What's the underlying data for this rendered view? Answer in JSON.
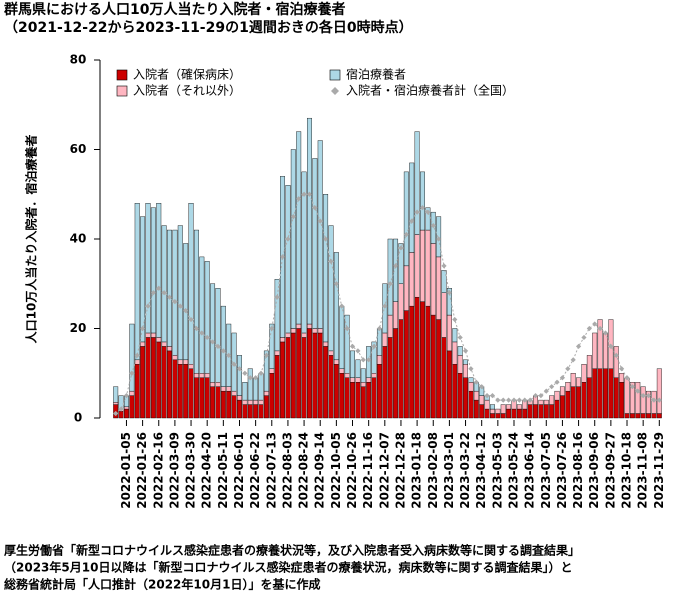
{
  "chart_data": {
    "type": "bar",
    "stacked": true,
    "title": "群馬県における人口10万人当たり入院者・宿泊療養者",
    "subtitle": "（2021-12-22から2023-11-29の1週間おきの各日0時時点）",
    "y_label": "人口10万人当たり入院者．宿泊療養者",
    "source": [
      "厚生労働省「新型コロナウイルス感染症患者の療養状況等，及び入院患者受入病床数等に関する調査結果」",
      "（2023年5月10日以降は「新型コロナウイルス感染症患者の療養状況，病床数等に関する調査結果」）と",
      "総務省統計局「人口推計（2022年10月1日）」を基に作成"
    ],
    "categories": [
      null,
      null,
      "2022-01-05",
      null,
      null,
      "2022-01-26",
      null,
      null,
      "2022-02-16",
      null,
      null,
      "2022-03-09",
      null,
      null,
      "2022-03-30",
      null,
      null,
      "2022-04-20",
      null,
      null,
      "2022-05-11",
      null,
      null,
      "2022-06-01",
      null,
      null,
      "2022-06-22",
      null,
      null,
      "2022-07-13",
      null,
      null,
      "2022-08-03",
      null,
      null,
      "2022-08-24",
      null,
      null,
      "2022-09-14",
      null,
      null,
      "2022-10-05",
      null,
      null,
      "2022-10-26",
      null,
      null,
      "2022-11-16",
      null,
      null,
      "2022-12-07",
      null,
      null,
      "2022-12-28",
      null,
      null,
      "2023-01-18",
      null,
      null,
      "2023-02-08",
      null,
      null,
      "2023-03-01",
      null,
      null,
      "2023-03-22",
      null,
      null,
      "2023-04-12",
      null,
      null,
      "2023-05-03",
      null,
      null,
      "2023-05-24",
      null,
      null,
      "2023-06-14",
      null,
      null,
      "2023-07-05",
      null,
      null,
      "2023-07-26",
      null,
      null,
      "2023-08-16",
      null,
      null,
      "2023-09-06",
      null,
      null,
      "2023-09-27",
      null,
      null,
      "2023-10-18",
      null,
      null,
      "2023-11-08",
      null,
      null,
      "2023-11-29"
    ],
    "series": [
      {
        "name": "入院者（確保病床）",
        "color": "#cc0000",
        "values": [
          3,
          1.5,
          2,
          5,
          12,
          16,
          18,
          18,
          17,
          16,
          15,
          13,
          12,
          12,
          11,
          9,
          9,
          9,
          7,
          7,
          6,
          6,
          5,
          4,
          3,
          3,
          3,
          3,
          5,
          10,
          14,
          17,
          18,
          19,
          20,
          18,
          20,
          19,
          19,
          16,
          14,
          12,
          10,
          9,
          8,
          8,
          7,
          8,
          9,
          12,
          16,
          18,
          20,
          22,
          24,
          25,
          27,
          26,
          25,
          23,
          22,
          18,
          15,
          12,
          10,
          9,
          6,
          4,
          3,
          2,
          1,
          1,
          1,
          2,
          2,
          2,
          2,
          3,
          3,
          3,
          3,
          3,
          4,
          5,
          6,
          7,
          7,
          8,
          9,
          11,
          11,
          11,
          11,
          9,
          8,
          1,
          1,
          1,
          1,
          1,
          1,
          1
        ]
      },
      {
        "name": "入院者（それ以外）",
        "color": "#ffb6c1",
        "values": [
          0.5,
          0.5,
          0.5,
          1,
          1,
          1,
          1,
          1,
          1,
          1,
          1,
          1,
          1,
          1,
          1,
          1,
          1,
          1,
          1,
          1,
          1,
          1,
          1,
          1,
          1,
          1,
          1,
          1,
          1,
          1,
          1,
          1,
          1,
          1,
          1,
          1,
          1,
          1,
          1,
          1,
          1,
          1,
          1,
          1,
          1,
          1,
          1,
          1,
          1,
          2,
          3,
          5,
          6,
          8,
          10,
          12,
          14,
          16,
          17,
          16,
          14,
          10,
          8,
          5,
          4,
          3,
          2,
          2,
          2,
          2,
          1,
          1,
          2,
          1,
          2,
          1,
          2,
          1,
          2,
          1,
          1,
          2,
          2,
          2,
          2,
          3,
          2,
          4,
          5,
          8,
          11,
          8,
          11,
          7,
          2,
          8,
          7,
          7,
          6,
          5,
          5,
          10
        ]
      },
      {
        "name": "宿泊療養者",
        "color": "#add8e6",
        "values": [
          3.5,
          3,
          2.5,
          15,
          35,
          28,
          29,
          28,
          30,
          26,
          26,
          28,
          30,
          26,
          36,
          32,
          26,
          25,
          22,
          21,
          18,
          14,
          13,
          9,
          4,
          7,
          5,
          6,
          9,
          10,
          16,
          36,
          33,
          40,
          43,
          36,
          46,
          38,
          42,
          33,
          28,
          24,
          14,
          13,
          6,
          4,
          3,
          7,
          7,
          6,
          11,
          17,
          14,
          9,
          21,
          20,
          23,
          13,
          5,
          7,
          9,
          5,
          6,
          3,
          2,
          1,
          1,
          2,
          2,
          1,
          1,
          0,
          0,
          0,
          0,
          0,
          0,
          0,
          0,
          0,
          0,
          0,
          0,
          0,
          0,
          0,
          0,
          0,
          0,
          0,
          0,
          0,
          0,
          0,
          0,
          0,
          0,
          0,
          0,
          0,
          0,
          0
        ]
      },
      {
        "name": "入院者・宿泊療養者計（全国）",
        "color": "#aaaaaa",
        "type": "line",
        "values": [
          1,
          2,
          5,
          10,
          14,
          20,
          25,
          28,
          29,
          28,
          27,
          26,
          25,
          24,
          22,
          20,
          19,
          18,
          17,
          16,
          15,
          14,
          12,
          11,
          10,
          9,
          9,
          10,
          14,
          20,
          27,
          36,
          40,
          45,
          49,
          50,
          50,
          47,
          44,
          40,
          35,
          30,
          25,
          20,
          16,
          15,
          13,
          13,
          16,
          20,
          25,
          30,
          34,
          38,
          41,
          44,
          46,
          47,
          46,
          43,
          40,
          34,
          28,
          22,
          18,
          15,
          11,
          8,
          7,
          5,
          5,
          4,
          4,
          4,
          4,
          4,
          4,
          4,
          5,
          5,
          6,
          7,
          8,
          9,
          11,
          13,
          16,
          18,
          20,
          21,
          20,
          19,
          16,
          14,
          11,
          9,
          7,
          6,
          5,
          5,
          4,
          4
        ]
      }
    ],
    "ylim": [
      0,
      80
    ],
    "yticks": [
      0,
      20,
      40,
      60,
      80
    ]
  }
}
